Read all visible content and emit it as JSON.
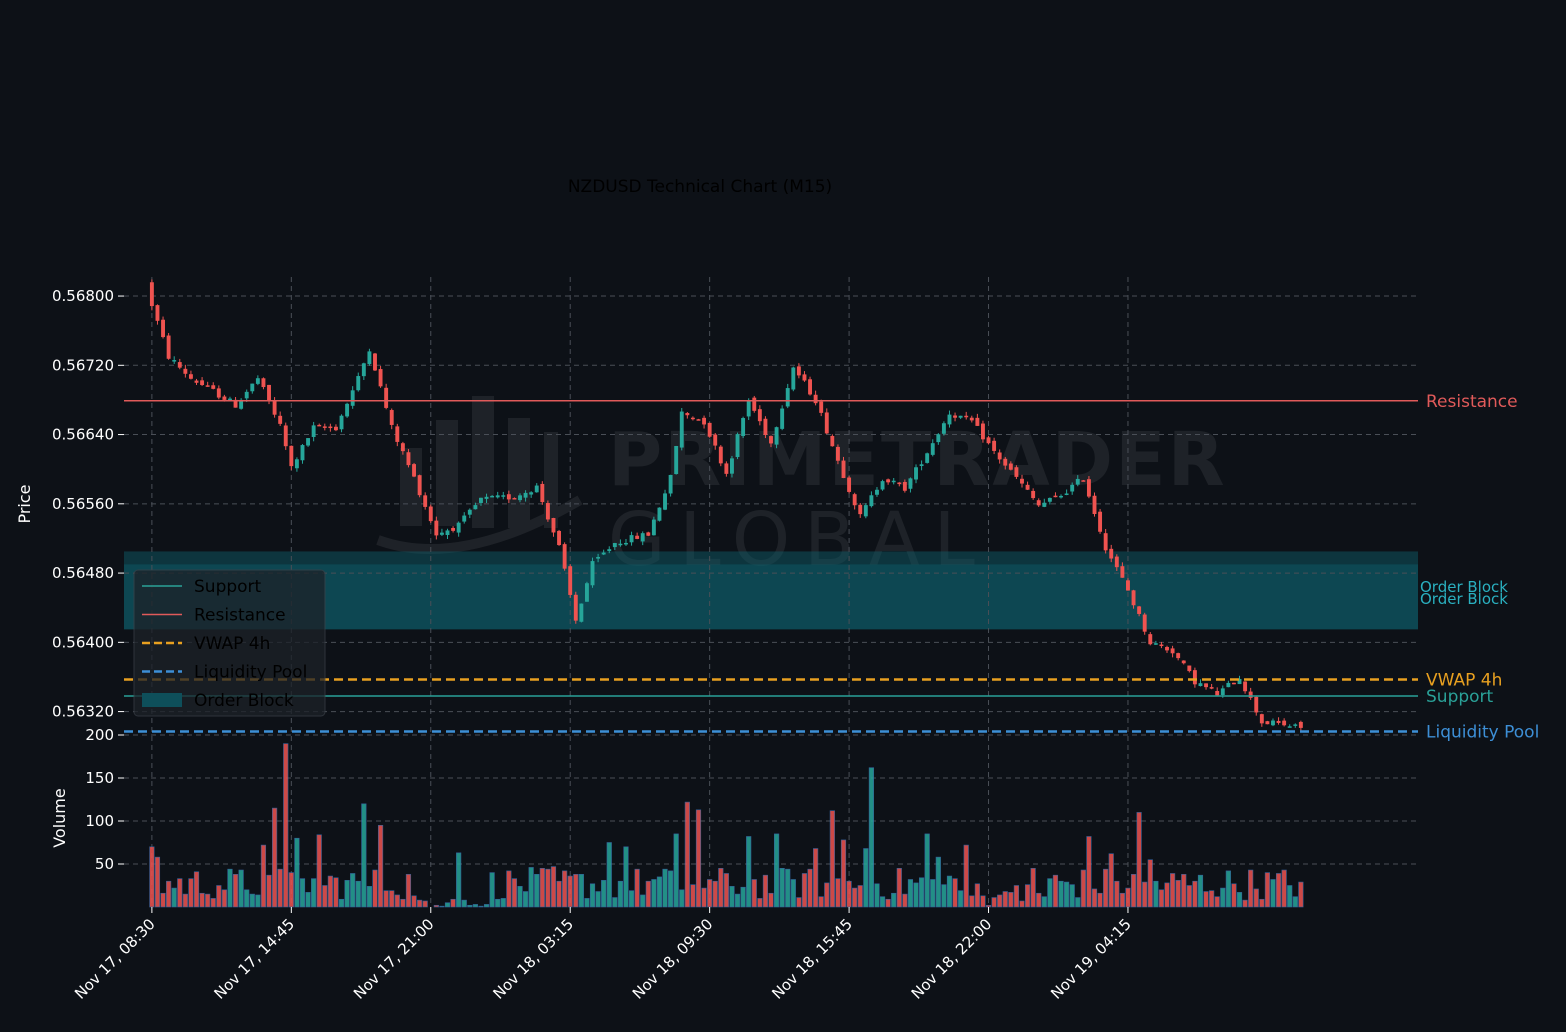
{
  "chart_data": {
    "type": "candlestick",
    "title": "NZDUSD Technical Chart (M15)",
    "watermark": [
      "PRIMETRADER",
      "GLOBAL"
    ],
    "price_panel": {
      "ylabel": "Price",
      "ylim": [
        0.563045,
        0.56822
      ],
      "yticks": [
        0.568,
        0.5672,
        0.5664,
        0.5656,
        0.5648,
        0.564,
        0.5632
      ],
      "ytick_labels": [
        "0.56800",
        "0.56720",
        "0.56640",
        "0.56560",
        "0.56480",
        "0.56400",
        "0.56320"
      ],
      "grid": true
    },
    "volume_panel": {
      "ylabel": "Volume",
      "ylim": [
        0,
        200
      ],
      "yticks": [
        50,
        100,
        150,
        200
      ],
      "ytick_labels": [
        "50",
        "100",
        "150",
        "200"
      ],
      "grid": true
    },
    "x_range": [
      -5,
      227
    ],
    "xticks": [
      0,
      25,
      50,
      75,
      100,
      125,
      150,
      175
    ],
    "xtick_labels": [
      "Nov 17, 08:30",
      "Nov 17, 14:45",
      "Nov 17, 21:00",
      "Nov 18, 03:15",
      "Nov 18, 09:30",
      "Nov 18, 15:45",
      "Nov 18, 22:00",
      "Nov 19, 04:15"
    ],
    "levels": [
      {
        "name": "Resistance",
        "value": 0.56679,
        "color": "#e05a5a",
        "style": "solid"
      },
      {
        "name": "VWAP 4h",
        "value": 0.56357,
        "color": "#e8a020",
        "style": "dashed"
      },
      {
        "name": "Support",
        "value": 0.56338,
        "color": "#2aa198",
        "style": "solid"
      },
      {
        "name": "Liquidity Pool",
        "value": 0.56297,
        "color": "#3d8fd6",
        "style": "dashed"
      }
    ],
    "order_blocks": [
      {
        "name": "Order Block",
        "low": 0.56415,
        "high": 0.56505,
        "label_value": 0.56464
      },
      {
        "name": "Order Block",
        "low": 0.56415,
        "high": 0.5649,
        "label_value": 0.5645
      }
    ],
    "legend": {
      "position": "lower-left",
      "entries": [
        {
          "name": "Support",
          "kind": "solid",
          "color": "#2aa198"
        },
        {
          "name": "Resistance",
          "kind": "solid",
          "color": "#e05a5a"
        },
        {
          "name": "VWAP 4h",
          "kind": "dashed",
          "color": "#e8a020"
        },
        {
          "name": "Liquidity Pool",
          "kind": "dashed",
          "color": "#3d8fd6"
        },
        {
          "name": "Order Block",
          "kind": "patch",
          "color": "#0e4f5a"
        }
      ]
    },
    "colors": {
      "up": "#26a69a",
      "down": "#ef5350",
      "grid": "#4a4f57",
      "text": "#ffffff",
      "background": "#0d1117"
    },
    "anchors": [
      [
        0,
        0.5681
      ],
      [
        4,
        0.5673
      ],
      [
        8,
        0.56705
      ],
      [
        12,
        0.5669
      ],
      [
        16,
        0.56674
      ],
      [
        20,
        0.56705
      ],
      [
        24,
        0.5665
      ],
      [
        26,
        0.56602
      ],
      [
        30,
        0.56648
      ],
      [
        34,
        0.56648
      ],
      [
        38,
        0.56705
      ],
      [
        40,
        0.5674
      ],
      [
        44,
        0.56648
      ],
      [
        48,
        0.5659
      ],
      [
        52,
        0.56525
      ],
      [
        56,
        0.56535
      ],
      [
        60,
        0.56565
      ],
      [
        66,
        0.56568
      ],
      [
        70,
        0.5658
      ],
      [
        74,
        0.5651
      ],
      [
        77,
        0.56425
      ],
      [
        80,
        0.5649
      ],
      [
        84,
        0.56515
      ],
      [
        90,
        0.56525
      ],
      [
        94,
        0.5659
      ],
      [
        96,
        0.56665
      ],
      [
        100,
        0.56655
      ],
      [
        104,
        0.56595
      ],
      [
        108,
        0.5668
      ],
      [
        112,
        0.5663
      ],
      [
        116,
        0.56718
      ],
      [
        120,
        0.5668
      ],
      [
        124,
        0.5661
      ],
      [
        128,
        0.56545
      ],
      [
        132,
        0.5659
      ],
      [
        136,
        0.56578
      ],
      [
        140,
        0.5662
      ],
      [
        144,
        0.56665
      ],
      [
        148,
        0.56655
      ],
      [
        152,
        0.5662
      ],
      [
        156,
        0.5659
      ],
      [
        160,
        0.56558
      ],
      [
        164,
        0.5657
      ],
      [
        168,
        0.5659
      ],
      [
        172,
        0.5651
      ],
      [
        176,
        0.5646
      ],
      [
        180,
        0.564
      ],
      [
        184,
        0.5639
      ],
      [
        188,
        0.56355
      ],
      [
        192,
        0.5634
      ],
      [
        196,
        0.5636
      ],
      [
        200,
        0.56308
      ],
      [
        204,
        0.56305
      ],
      [
        206,
        0.56302
      ]
    ],
    "volume_spikes": [
      [
        0,
        70
      ],
      [
        1,
        58
      ],
      [
        20,
        72
      ],
      [
        22,
        115
      ],
      [
        24,
        190
      ],
      [
        26,
        80
      ],
      [
        30,
        84
      ],
      [
        38,
        120
      ],
      [
        41,
        95
      ],
      [
        55,
        63
      ],
      [
        72,
        47
      ],
      [
        82,
        75
      ],
      [
        85,
        70
      ],
      [
        94,
        85
      ],
      [
        96,
        122
      ],
      [
        98,
        113
      ],
      [
        107,
        82
      ],
      [
        112,
        85
      ],
      [
        119,
        68
      ],
      [
        122,
        112
      ],
      [
        124,
        78
      ],
      [
        128,
        68
      ],
      [
        129,
        162
      ],
      [
        139,
        85
      ],
      [
        141,
        58
      ],
      [
        146,
        72
      ],
      [
        158,
        45
      ],
      [
        168,
        82
      ],
      [
        172,
        62
      ],
      [
        177,
        110
      ],
      [
        179,
        55
      ]
    ]
  }
}
